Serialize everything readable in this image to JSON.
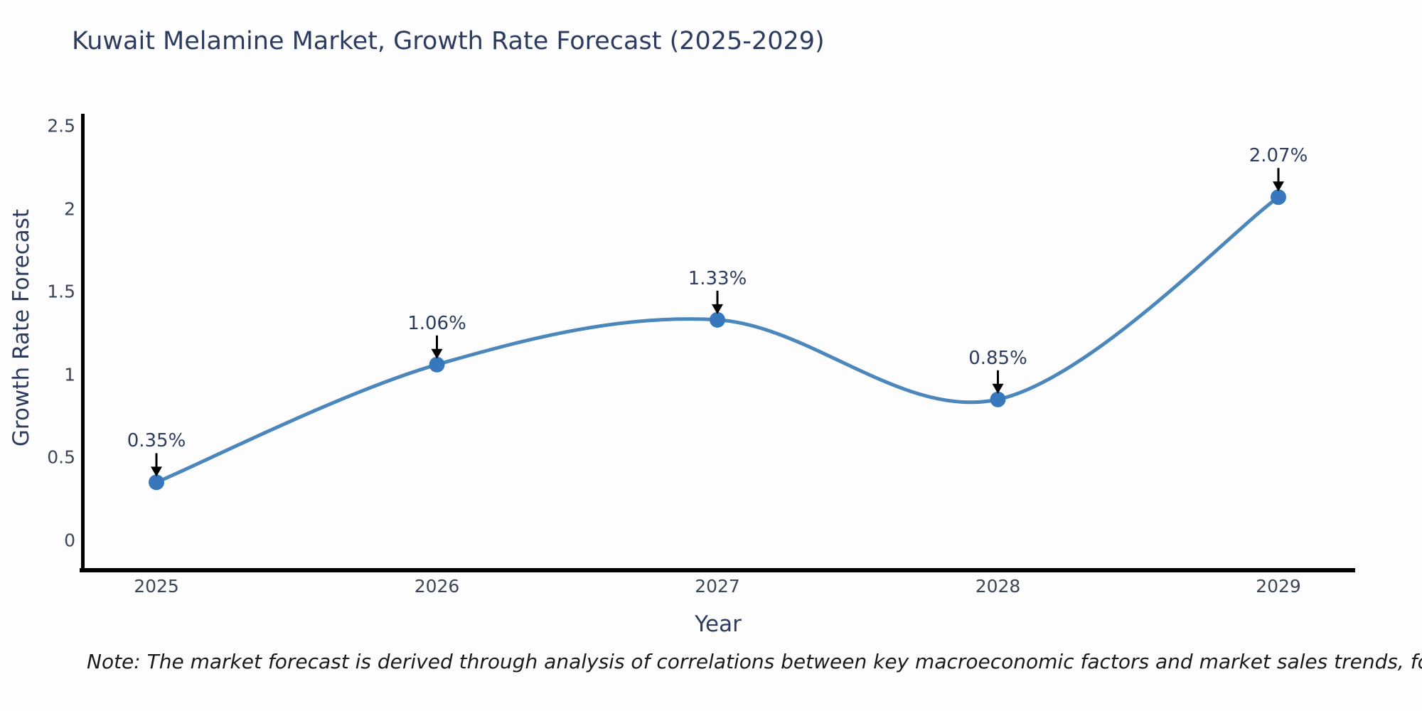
{
  "chart": {
    "title": "Kuwait Melamine Market, Growth Rate Forecast (2025-2029)",
    "note": "Note: The market forecast is derived through analysis of correlations between key macroeconomic factors and market sales trends, followed by predictive modeling to project future sales",
    "colors": {
      "line": "#4b87bb",
      "marker": "#3778bc",
      "spine": "#000000",
      "title_text": "#2d3c5e",
      "tick_text": "#3b4756",
      "annotation_text": "#2d3c5e",
      "arrow": "#000000",
      "background": "#fdfdfd"
    }
  },
  "chart_data": {
    "type": "line",
    "title": "Kuwait Melamine Market, Growth Rate Forecast (2025-2029)",
    "xlabel": "Year",
    "ylabel": "Growth Rate Forecast",
    "categories": [
      "2025",
      "2026",
      "2027",
      "2028",
      "2029"
    ],
    "values": [
      0.35,
      1.06,
      1.33,
      0.85,
      2.07
    ],
    "point_labels": [
      "0.35%",
      "1.06%",
      "1.33%",
      "0.85%",
      "2.07%"
    ],
    "y_ticks": [
      0,
      0.5,
      1,
      1.5,
      2,
      2.5
    ],
    "y_tick_labels": [
      "0",
      "0.5",
      "1",
      "1.5",
      "2",
      "2.5"
    ],
    "ylim": [
      0,
      2.5
    ],
    "grid": false,
    "legend": "none",
    "line_style": "smooth-spline",
    "markers": "circle",
    "annotations": "value labels with downward arrows above each point"
  }
}
